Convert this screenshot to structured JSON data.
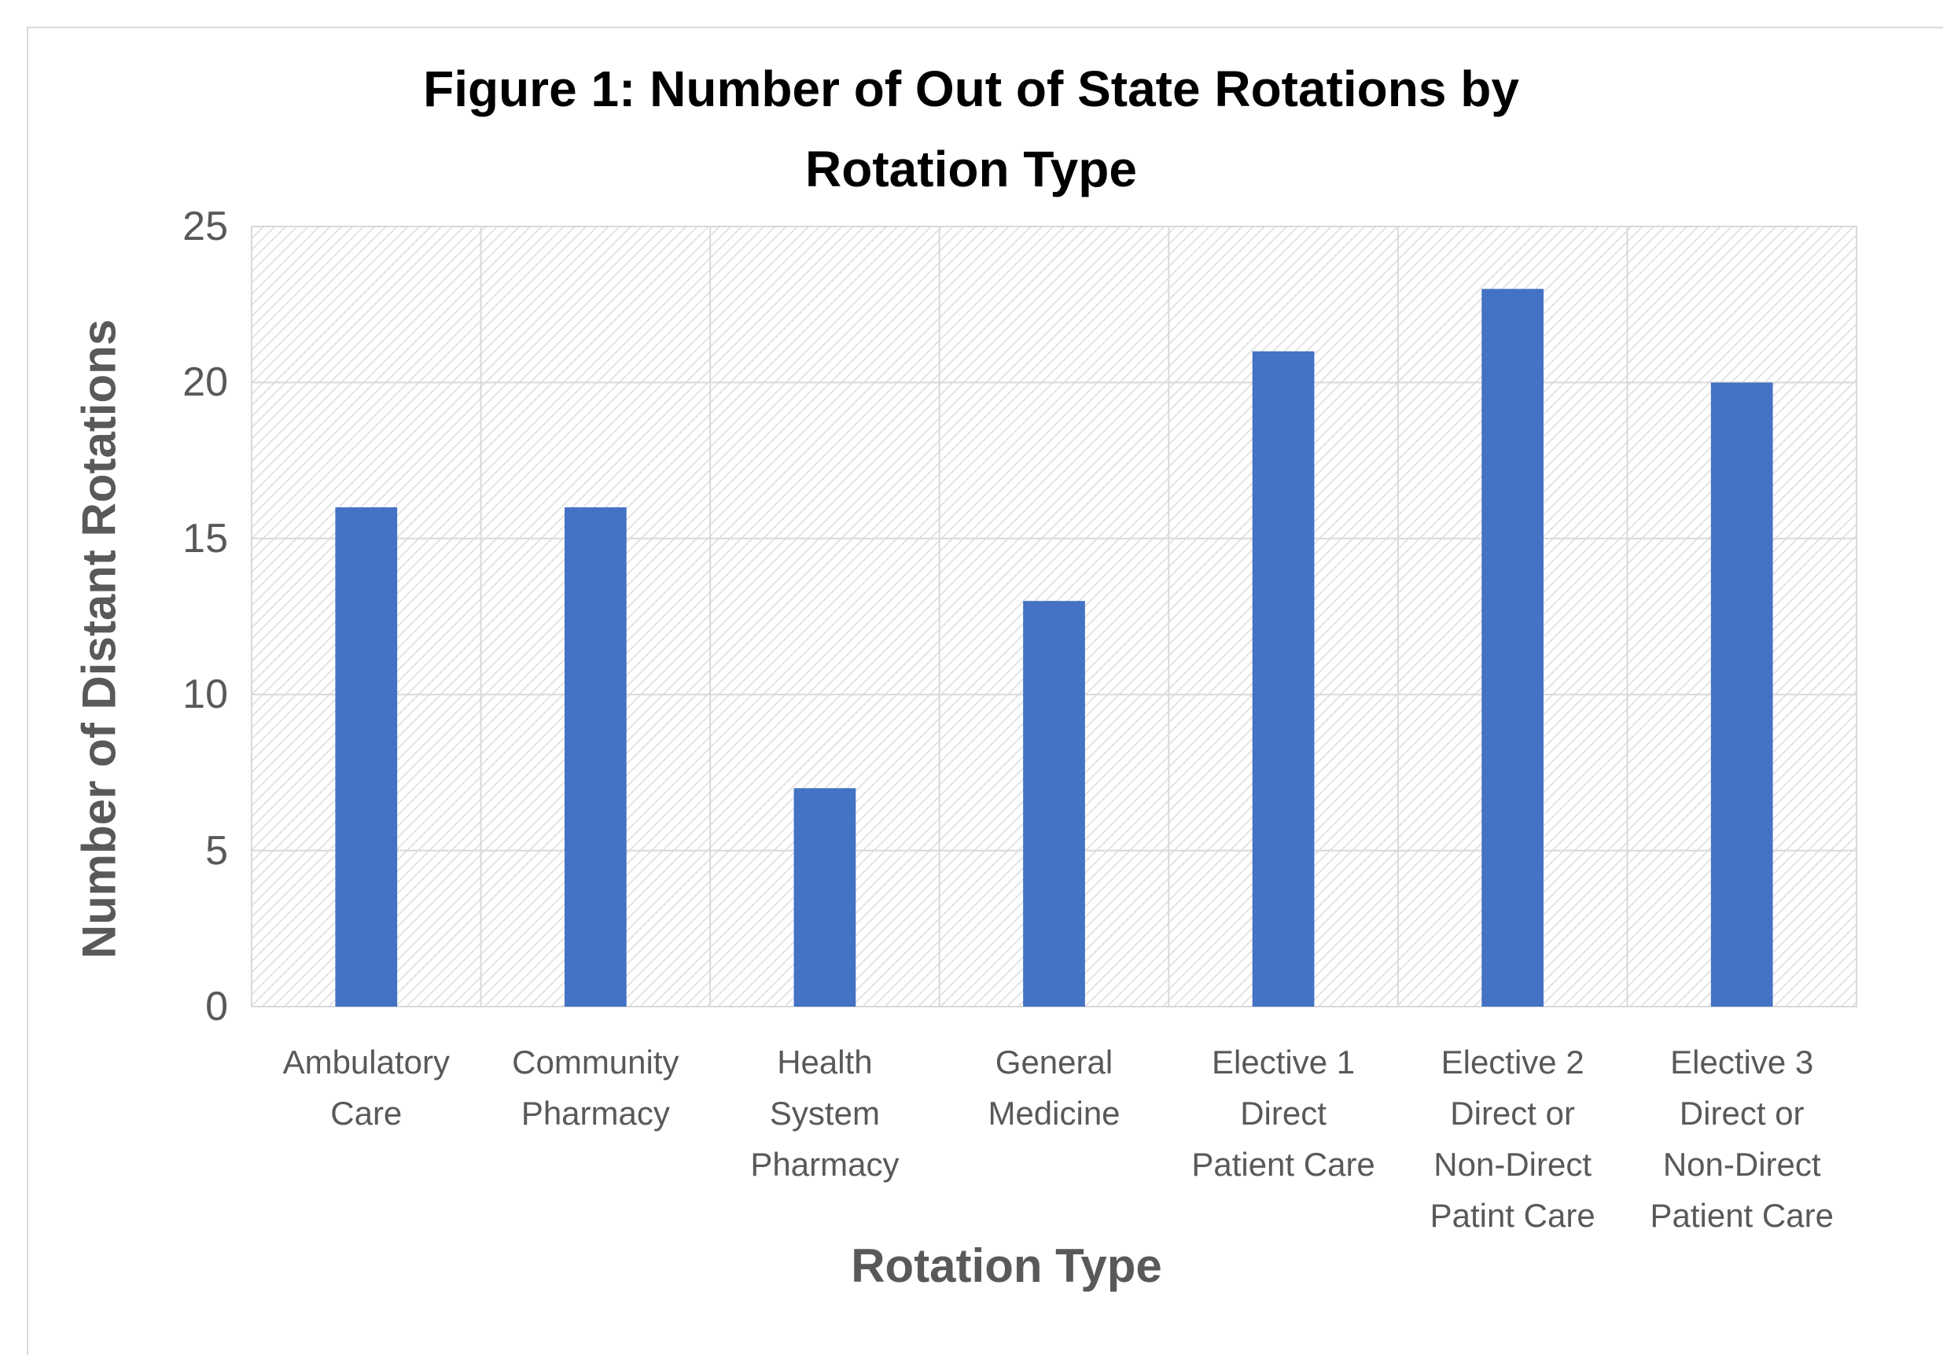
{
  "chart_data": {
    "type": "bar",
    "title": "Figure 1: Number of Out of State Rotations by Rotation Type",
    "x_axis_label": "Rotation Type",
    "y_axis_label": "Number of Distant Rotations",
    "categories": [
      "Ambulatory Care",
      "Community Pharmacy",
      "Health System Pharmacy",
      "General Medicine",
      "Elective 1 Direct Patient Care",
      "Elective 2 Direct or Non-Direct Patint Care",
      "Elective 3 Direct or Non-Direct Patient Care"
    ],
    "values": [
      16,
      16,
      7,
      13,
      21,
      23,
      20
    ],
    "color": "#4472c4",
    "ylim": [
      0,
      25
    ],
    "yticks": [
      0,
      5,
      10,
      15,
      20,
      25
    ],
    "grid": true
  }
}
